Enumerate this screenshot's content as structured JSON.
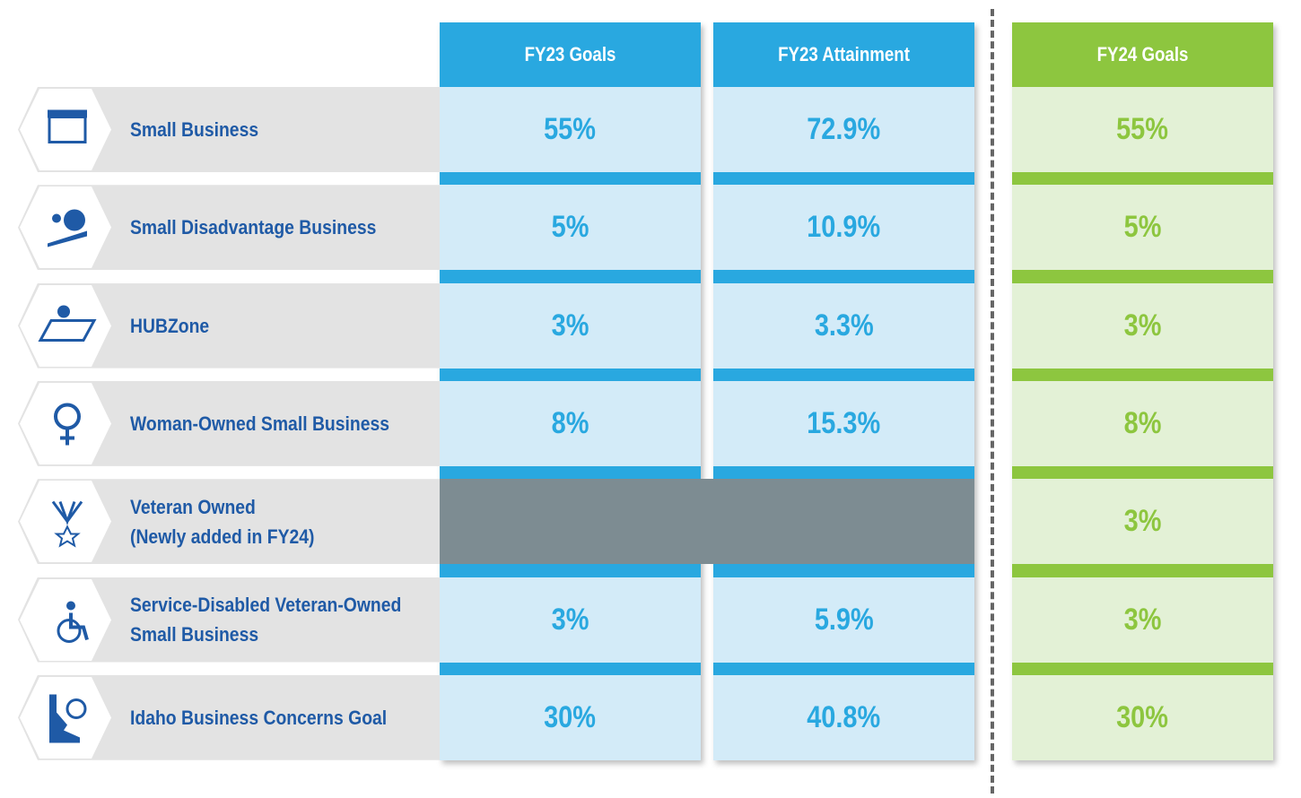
{
  "columns": [
    "FY23 Goals",
    "FY23 Attainment",
    "FY24 Goals"
  ],
  "rows": [
    {
      "label": [
        "Small Business"
      ],
      "values": [
        "55%",
        "72.9%",
        "55%"
      ]
    },
    {
      "label": [
        "Small Disadvantage Business"
      ],
      "values": [
        "5%",
        "10.9%",
        "5%"
      ]
    },
    {
      "label": [
        "HUBZone"
      ],
      "values": [
        "3%",
        "3.3%",
        "3%"
      ]
    },
    {
      "label": [
        "Woman-Owned Small Business"
      ],
      "values": [
        "8%",
        "15.3%",
        "8%"
      ]
    },
    {
      "label": [
        "Veteran Owned",
        "(Newly added in FY24)"
      ],
      "values": [
        null,
        null,
        "3%"
      ]
    },
    {
      "label": [
        "Service-Disabled Veteran-Owned",
        "Small Business"
      ],
      "values": [
        "3%",
        "5.9%",
        "3%"
      ]
    },
    {
      "label": [
        "Idaho Business Concerns Goal"
      ],
      "values": [
        "30%",
        "40.8%",
        "30%"
      ]
    }
  ]
}
